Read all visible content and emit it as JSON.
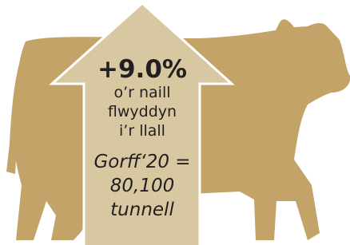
{
  "headline": "+9.0%",
  "subline": [
    "o’r naill",
    "flwyddyn",
    "i’r llall"
  ],
  "detail": [
    "Gorff‘20 =",
    "80,100",
    "tunnell"
  ]
}
